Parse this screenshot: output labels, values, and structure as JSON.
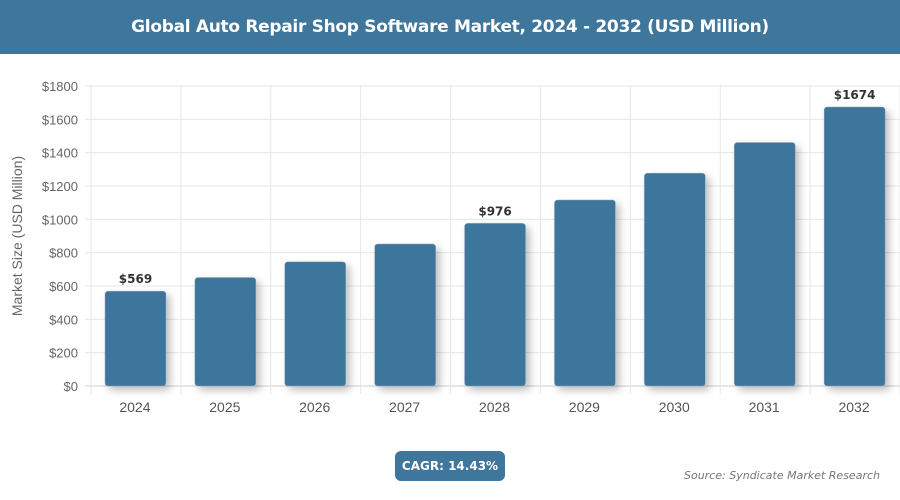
{
  "chart_data": {
    "type": "bar",
    "title": "Global Auto Repair Shop Software Market, 2024 - 2032 (USD Million)",
    "xlabel": "",
    "ylabel": "Market Size (USD Million)",
    "categories": [
      "2024",
      "2025",
      "2026",
      "2027",
      "2028",
      "2029",
      "2030",
      "2031",
      "2032"
    ],
    "values": [
      569,
      651,
      745,
      852,
      976,
      1116,
      1277,
      1461,
      1674
    ],
    "data_labels": {
      "0": "$569",
      "4": "$976",
      "8": "$1674"
    },
    "ylim": [
      0,
      1800
    ],
    "yticks": [
      0,
      200,
      400,
      600,
      800,
      1000,
      1200,
      1400,
      1600,
      1800
    ],
    "ytick_prefix": "$",
    "grid": true,
    "bar_color": "#3e769c"
  },
  "footer": {
    "cagr": "CAGR: 14.43%",
    "source": "Source: Syndicate Market Research"
  }
}
